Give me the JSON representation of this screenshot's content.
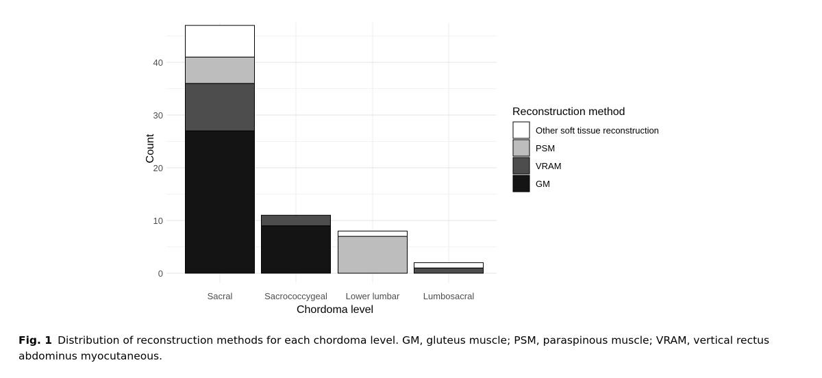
{
  "chart_data": {
    "type": "bar",
    "stacked": true,
    "categories": [
      "Sacral",
      "Sacrococcygeal",
      "Lower lumbar",
      "Lumbosacral"
    ],
    "series": [
      {
        "name": "GM",
        "values": [
          27,
          9,
          0,
          0
        ],
        "color": "#141414"
      },
      {
        "name": "VRAM",
        "values": [
          9,
          2,
          0,
          1
        ],
        "color": "#4d4d4d"
      },
      {
        "name": "PSM",
        "values": [
          5,
          0,
          7,
          0
        ],
        "color": "#bdbdbd"
      },
      {
        "name": "Other soft tissue reconstruction",
        "values": [
          6,
          0,
          1,
          1
        ],
        "color": "#ffffff"
      }
    ],
    "xlabel": "Chordoma level",
    "ylabel": "Count",
    "ylim": [
      0,
      47
    ],
    "yticks": [
      0,
      10,
      20,
      30,
      40
    ],
    "grid": true,
    "legend": {
      "title": "Reconstruction method",
      "placement": "right",
      "order": [
        "Other soft tissue reconstruction",
        "PSM",
        "VRAM",
        "GM"
      ]
    }
  },
  "caption": {
    "label": "Fig. 1",
    "text": "Distribution of reconstruction methods for each chordoma level. GM, gluteus muscle; PSM, paraspinous muscle; VRAM, vertical rectus abdominus myocutaneous."
  }
}
